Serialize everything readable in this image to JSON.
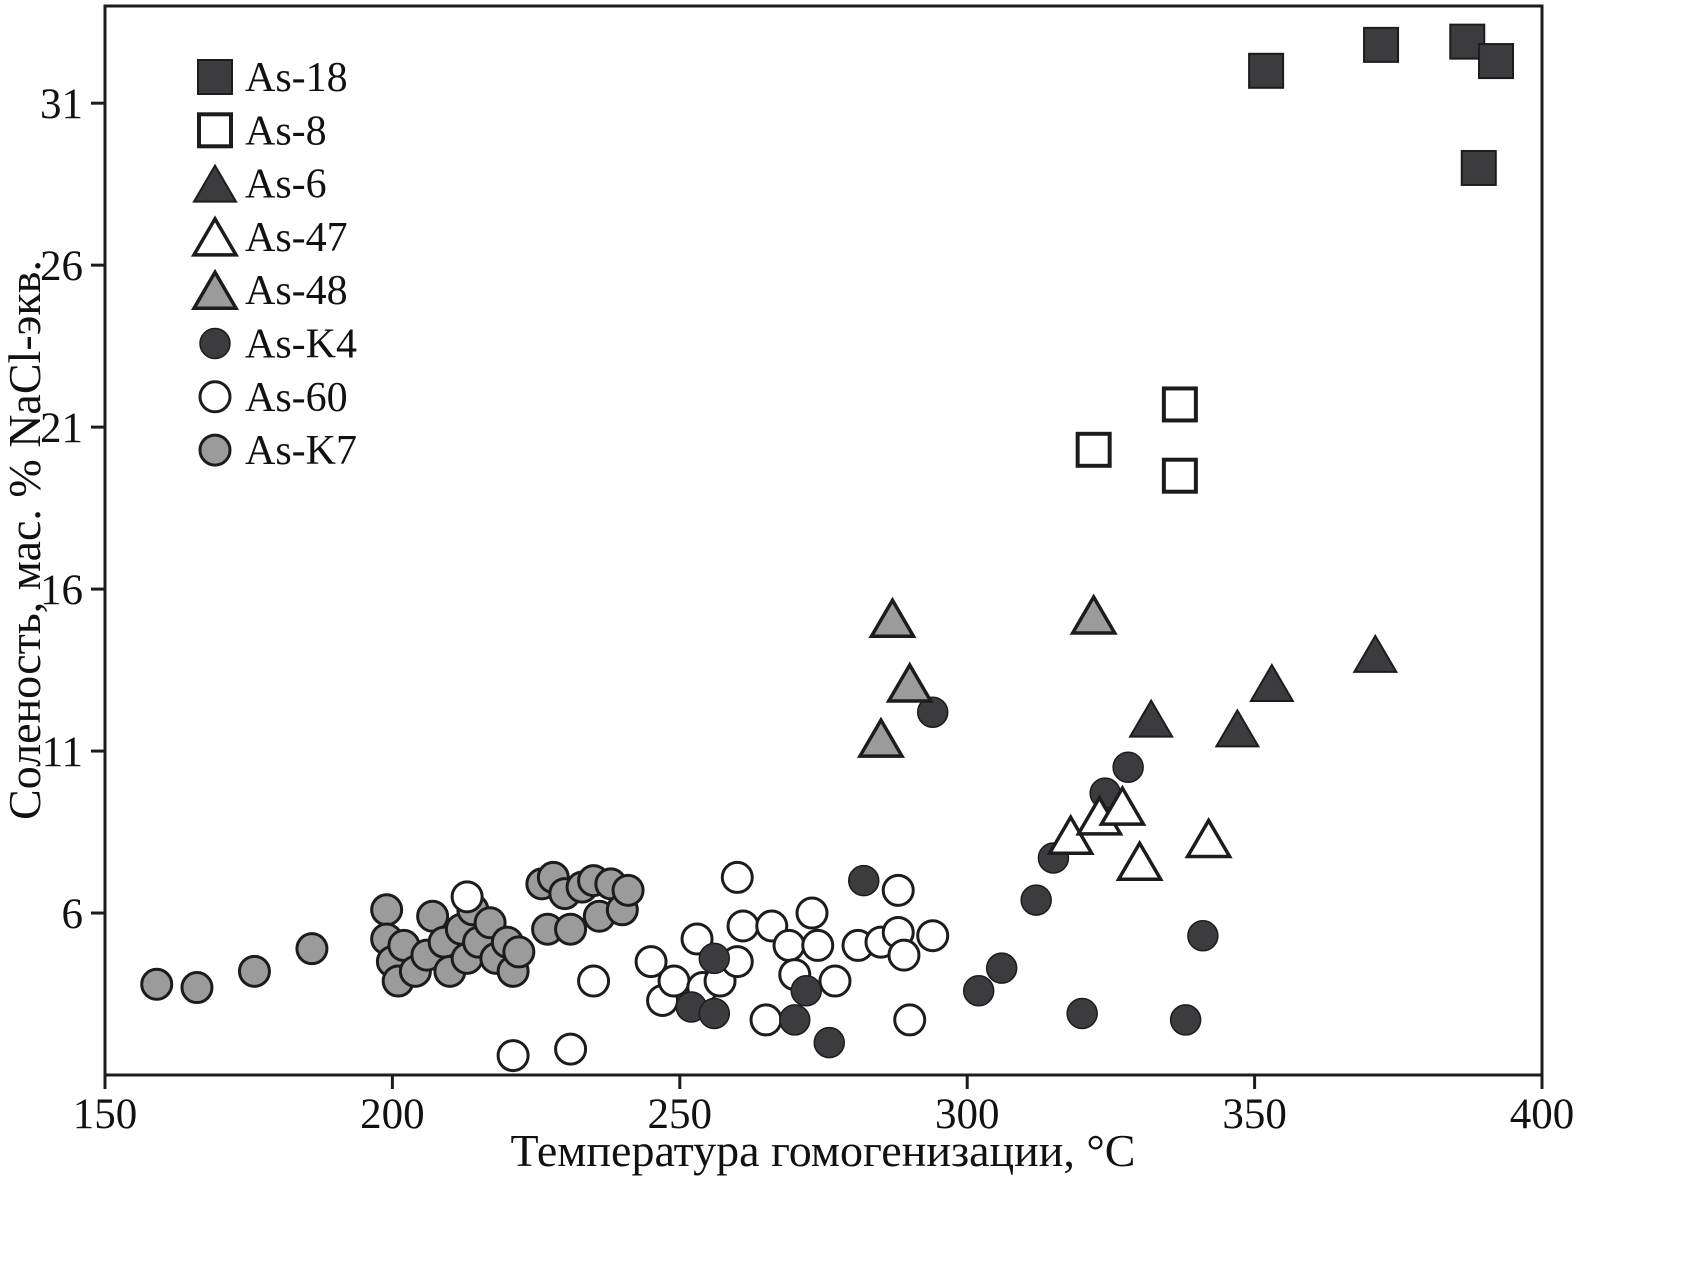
{
  "chart_data": {
    "type": "scatter",
    "title": "",
    "xlabel": "Температура гомогенизации, °C",
    "ylabel": "Соленость, мас. % NaCl-экв.",
    "xlim": [
      150,
      400
    ],
    "ylim": [
      1,
      34
    ],
    "xticks": [
      150,
      200,
      250,
      300,
      350,
      400
    ],
    "yticks": [
      6,
      11,
      16,
      21,
      26,
      31
    ],
    "grid": false,
    "legend_position": "top-left",
    "colors": {
      "dark": "#3c3c3e",
      "gray": "#9b9b9b",
      "open": "#ffffff",
      "stroke": "#1c1c1c"
    },
    "series": [
      {
        "name": "As-18",
        "marker": "square-dark",
        "points": [
          [
            352,
            32.0
          ],
          [
            372,
            32.8
          ],
          [
            387,
            32.9
          ],
          [
            392,
            32.3
          ],
          [
            389,
            29.0
          ]
        ]
      },
      {
        "name": "As-8",
        "marker": "square-open",
        "points": [
          [
            322,
            20.3
          ],
          [
            337,
            21.7
          ],
          [
            337,
            19.5
          ]
        ]
      },
      {
        "name": "As-6",
        "marker": "triangle-dark",
        "points": [
          [
            332,
            12.0
          ],
          [
            347,
            11.7
          ],
          [
            353,
            13.1
          ],
          [
            371,
            14.0
          ]
        ]
      },
      {
        "name": "As-47",
        "marker": "triangle-open",
        "points": [
          [
            318,
            8.4
          ],
          [
            323,
            9.0
          ],
          [
            327,
            9.3
          ],
          [
            330,
            7.6
          ],
          [
            342,
            8.3
          ]
        ]
      },
      {
        "name": "As-48",
        "marker": "triangle-gray",
        "points": [
          [
            287,
            15.1
          ],
          [
            290,
            13.1
          ],
          [
            285,
            11.4
          ],
          [
            322,
            15.2
          ]
        ]
      },
      {
        "name": "As-K4",
        "marker": "circle-dark",
        "points": [
          [
            294,
            12.2
          ],
          [
            282,
            7.0
          ],
          [
            252,
            3.1
          ],
          [
            256,
            4.6
          ],
          [
            256,
            2.9
          ],
          [
            270,
            2.7
          ],
          [
            272,
            3.6
          ],
          [
            276,
            2.0
          ],
          [
            302,
            3.6
          ],
          [
            306,
            4.3
          ],
          [
            312,
            6.4
          ],
          [
            315,
            7.7
          ],
          [
            324,
            9.7
          ],
          [
            328,
            10.5
          ],
          [
            320,
            2.9
          ],
          [
            338,
            2.7
          ],
          [
            341,
            5.3
          ]
        ]
      },
      {
        "name": "As-60",
        "marker": "circle-open",
        "points": [
          [
            213,
            6.5
          ],
          [
            221,
            1.6
          ],
          [
            231,
            1.8
          ],
          [
            235,
            3.9
          ],
          [
            245,
            4.5
          ],
          [
            247,
            3.3
          ],
          [
            249,
            3.9
          ],
          [
            253,
            5.2
          ],
          [
            254,
            3.7
          ],
          [
            257,
            3.9
          ],
          [
            260,
            4.5
          ],
          [
            260,
            7.1
          ],
          [
            261,
            5.6
          ],
          [
            265,
            2.7
          ],
          [
            266,
            5.6
          ],
          [
            269,
            5.0
          ],
          [
            270,
            4.1
          ],
          [
            273,
            6.0
          ],
          [
            274,
            5.0
          ],
          [
            277,
            3.9
          ],
          [
            281,
            5.0
          ],
          [
            285,
            5.1
          ],
          [
            288,
            5.4
          ],
          [
            288,
            6.7
          ],
          [
            289,
            4.7
          ],
          [
            290,
            2.7
          ],
          [
            294,
            5.3
          ]
        ]
      },
      {
        "name": "As-K7",
        "marker": "circle-gray",
        "points": [
          [
            159,
            3.8
          ],
          [
            166,
            3.7
          ],
          [
            176,
            4.2
          ],
          [
            186,
            4.9
          ],
          [
            199,
            6.1
          ],
          [
            199,
            5.2
          ],
          [
            200,
            4.5
          ],
          [
            201,
            3.9
          ],
          [
            202,
            5.0
          ],
          [
            204,
            4.2
          ],
          [
            206,
            4.7
          ],
          [
            207,
            5.9
          ],
          [
            209,
            5.1
          ],
          [
            210,
            4.2
          ],
          [
            212,
            5.5
          ],
          [
            213,
            4.6
          ],
          [
            214,
            6.1
          ],
          [
            215,
            5.1
          ],
          [
            217,
            5.7
          ],
          [
            218,
            4.6
          ],
          [
            220,
            5.1
          ],
          [
            221,
            4.2
          ],
          [
            222,
            4.8
          ],
          [
            226,
            6.9
          ],
          [
            227,
            5.5
          ],
          [
            228,
            7.1
          ],
          [
            230,
            6.6
          ],
          [
            231,
            5.5
          ],
          [
            233,
            6.8
          ],
          [
            235,
            7.0
          ],
          [
            236,
            5.9
          ],
          [
            238,
            6.9
          ],
          [
            240,
            6.1
          ],
          [
            241,
            6.7
          ]
        ]
      }
    ]
  }
}
